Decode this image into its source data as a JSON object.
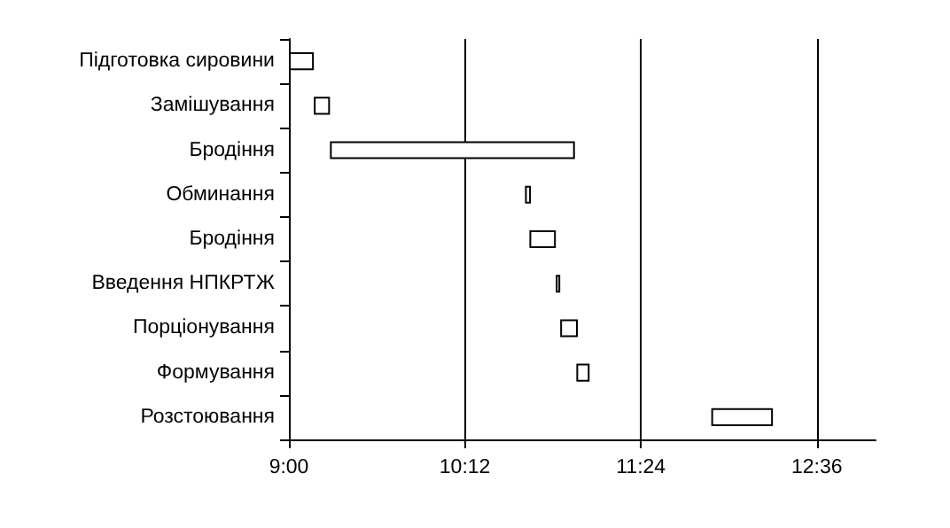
{
  "chart_data": {
    "type": "bar",
    "orientation": "horizontal",
    "categories": [
      "Підготовка сировини",
      "Замішування",
      "Бродіння",
      "Обминання",
      "Бродіння",
      "Введення НПКРТЖ",
      "Порціонування",
      "Формування",
      "Розстоювання"
    ],
    "base": [
      9.0,
      9.17,
      9.28,
      10.61,
      10.64,
      10.82,
      10.85,
      10.96,
      11.88
    ],
    "values": [
      0.17,
      0.11,
      1.67,
      0.04,
      0.18,
      0.03,
      0.12,
      0.09,
      0.42
    ],
    "color": "#ffffff",
    "xlim": [
      9,
      13
    ],
    "xticks": [
      {
        "value": 9,
        "label": "9:00"
      },
      {
        "value": 10.2,
        "label": "10:12"
      },
      {
        "value": 11.4,
        "label": "11:24"
      },
      {
        "value": 12.6,
        "label": "12:36"
      }
    ],
    "grid": "x"
  }
}
